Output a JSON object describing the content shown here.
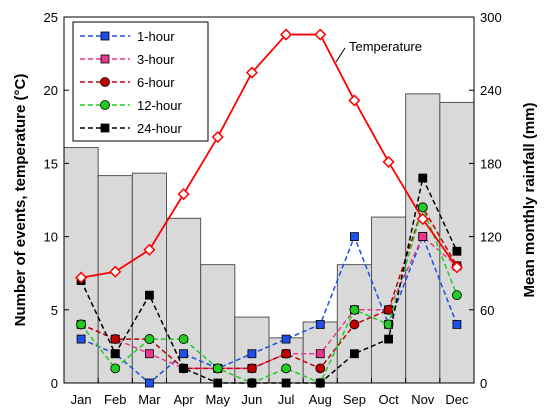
{
  "chart_data": {
    "type": "bar",
    "categories": [
      "Jan",
      "Feb",
      "Mar",
      "Apr",
      "May",
      "Jun",
      "Jul",
      "Aug",
      "Sep",
      "Oct",
      "Nov",
      "Dec"
    ],
    "ylabel_left": "Number of events, temperature (°C)",
    "ylabel_right": "Mean monthly rainfall (mm)",
    "ylim_left": [
      0,
      25
    ],
    "ylim_right": [
      0,
      300
    ],
    "yticks_left": [
      "0",
      "5",
      "10",
      "15",
      "20",
      "25"
    ],
    "yticks_right": [
      "0",
      "60",
      "120",
      "180",
      "240",
      "300"
    ],
    "rainfall": {
      "values": [
        193,
        170,
        172,
        135,
        97,
        54,
        37,
        50,
        97,
        136,
        237,
        230
      ],
      "fill_color": "#d9d9d9",
      "edge_color": "#555555"
    },
    "temperature": {
      "name": "Temperature",
      "values": [
        7.2,
        7.6,
        9.1,
        12.9,
        16.8,
        21.2,
        23.8,
        23.8,
        19.3,
        15.1,
        11.2,
        7.9
      ],
      "color": "#ff0000",
      "annotation": "Temperature"
    },
    "series": [
      {
        "name": "1-hour",
        "color": "#1f4fe6",
        "marker": "square",
        "values": [
          3,
          2,
          0,
          2,
          1,
          2,
          3,
          4,
          10,
          4,
          10,
          4
        ]
      },
      {
        "name": "3-hour",
        "color": "#e8388b",
        "marker": "square",
        "values": [
          4,
          3,
          2,
          1,
          1,
          1,
          2,
          2,
          5,
          5,
          10,
          8
        ]
      },
      {
        "name": "6-hour",
        "color": "#c00000",
        "marker": "circle",
        "values": [
          4,
          3,
          3,
          1,
          1,
          1,
          2,
          1,
          4,
          5,
          12,
          8
        ]
      },
      {
        "name": "12-hour",
        "color": "#22cc22",
        "marker": "circle",
        "values": [
          4,
          1,
          3,
          3,
          1,
          0,
          1,
          0,
          5,
          4,
          12,
          6
        ]
      },
      {
        "name": "24-hour",
        "color": "#000000",
        "marker": "square",
        "values": [
          7,
          2,
          6,
          1,
          0,
          0,
          0,
          0,
          2,
          3,
          14,
          9
        ]
      }
    ],
    "legend_position": "top-left",
    "grid": false
  }
}
